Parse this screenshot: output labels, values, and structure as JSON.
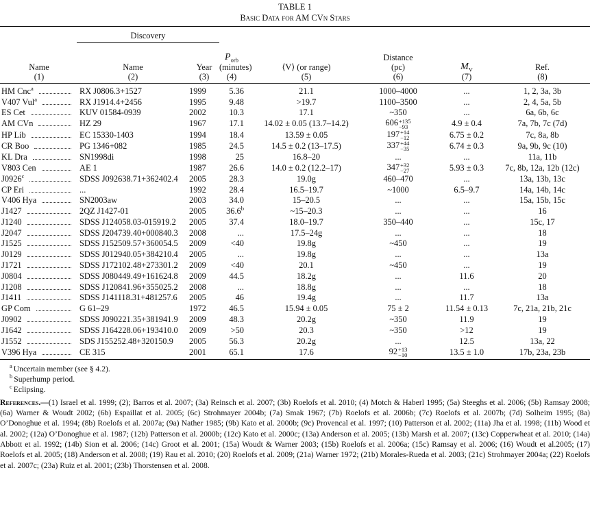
{
  "header": {
    "title": "TABLE 1",
    "subtitle": "Basic Data for AM CVn Stars"
  },
  "table": {
    "group_header": "Discovery",
    "columns": [
      {
        "label": "Name",
        "number": "(1)"
      },
      {
        "label": "Name",
        "number": "(2)"
      },
      {
        "label": "Year",
        "number": "(3)"
      },
      {
        "label": {
          "text": "P",
          "sub": "orb"
        },
        "unit": "(minutes)",
        "number": "(4)"
      },
      {
        "label": "⟨V⟩ (or range)",
        "number": "(5)"
      },
      {
        "label": "Distance",
        "unit": "(pc)",
        "number": "(6)"
      },
      {
        "label": {
          "text": "M",
          "sub": "V"
        },
        "number": "(7)"
      },
      {
        "label": "Ref.",
        "number": "(8)"
      }
    ],
    "rows": [
      [
        {
          "text": "HM Cnc",
          "sup": "a"
        },
        "RX J0806.3+1527",
        "1999",
        "5.36",
        "21.1",
        "1000–4000",
        "...",
        "1, 2, 3a, 3b"
      ],
      [
        {
          "text": "V407 Vul",
          "sup": "a"
        },
        "RX J1914.4+2456",
        "1995",
        "9.48",
        ">19.7",
        "1100–3500",
        "...",
        "2, 4, 5a, 5b"
      ],
      [
        "ES Cet",
        "KUV 01584-0939",
        "2002",
        "10.3",
        "17.1",
        "~350",
        "...",
        "6a, 6b, 6c"
      ],
      [
        "AM CVn",
        "HZ 29",
        "1967",
        "17.1",
        "14.02 ± 0.05 (13.7–14.2)",
        {
          "text": "606",
          "sup": "+135",
          "sub": "−93"
        },
        "4.9 ± 0.4",
        "7a, 7b, 7c (7d)"
      ],
      [
        "HP Lib",
        "EC 15330-1403",
        "1994",
        "18.4",
        "13.59 ± 0.05",
        {
          "text": "197",
          "sup": "+14",
          "sub": "−12"
        },
        "6.75 ± 0.2",
        "7c, 8a, 8b"
      ],
      [
        "CR Boo",
        "PG 1346+082",
        "1985",
        "24.5",
        "14.5 ± 0.2 (13–17.5)",
        {
          "text": "337",
          "sup": "+44",
          "sub": "−35"
        },
        "6.74 ± 0.3",
        "9a, 9b, 9c (10)"
      ],
      [
        "KL Dra",
        "SN1998di",
        "1998",
        "25",
        "16.8–20",
        "...",
        "...",
        "11a, 11b"
      ],
      [
        "V803 Cen",
        "AE 1",
        "1987",
        "26.6",
        "14.0 ± 0.2 (12.2–17)",
        {
          "text": "347",
          "sup": "+32",
          "sub": "−27"
        },
        "5.93 ± 0.3",
        "7c, 8b, 12a, 12b (12c)"
      ],
      [
        {
          "text": "J0926",
          "sup": "c"
        },
        "SDSS J092638.71+362402.4",
        "2005",
        "28.3",
        "19.0g",
        "460–470",
        "...",
        "13a, 13b, 13c"
      ],
      [
        "CP Eri",
        "...",
        "1992",
        "28.4",
        "16.5–19.7",
        "~1000",
        "6.5–9.7",
        "14a, 14b, 14c"
      ],
      [
        "V406 Hya",
        "SN2003aw",
        "2003",
        "34.0",
        "15–20.5",
        "...",
        "...",
        "15a, 15b, 15c"
      ],
      [
        "J1427",
        "2QZ J1427-01",
        "2005",
        {
          "text": "36.6",
          "sup": "b"
        },
        "~15–20.3",
        "...",
        "...",
        "16"
      ],
      [
        "J1240",
        "SDSS J124058.03-015919.2",
        "2005",
        "37.4",
        "18.0–19.7",
        "350–440",
        "...",
        "15c, 17"
      ],
      [
        "J2047",
        "SDSS J204739.40+000840.3",
        "2008",
        "...",
        "17.5–24g",
        "...",
        "...",
        "18"
      ],
      [
        "J1525",
        "SDSS J152509.57+360054.5",
        "2009",
        "<40",
        "19.8g",
        "~450",
        "...",
        "19"
      ],
      [
        "J0129",
        "SDSS J012940.05+384210.4",
        "2005",
        "...",
        "19.8g",
        "...",
        "...",
        "13a"
      ],
      [
        "J1721",
        "SDSS J172102.48+273301.2",
        "2009",
        "<40",
        "20.1",
        "~450",
        "...",
        "19"
      ],
      [
        "J0804",
        "SDSS J080449.49+161624.8",
        "2009",
        "44.5",
        "18.2g",
        "...",
        "11.6",
        "20"
      ],
      [
        "J1208",
        "SDSS J120841.96+355025.2",
        "2008",
        "...",
        "18.8g",
        "...",
        "...",
        "18"
      ],
      [
        "J1411",
        "SDSS J141118.31+481257.6",
        "2005",
        "46",
        "19.4g",
        "...",
        "11.7",
        "13a"
      ],
      [
        "GP Com",
        "G 61–29",
        "1972",
        "46.5",
        "15.94 ± 0.05",
        "75 ± 2",
        "11.54 ± 0.13",
        "7c, 21a, 21b, 21c"
      ],
      [
        "J0902",
        "SDSS J090221.35+381941.9",
        "2009",
        "48.3",
        "20.2g",
        "~350",
        "11.9",
        "19"
      ],
      [
        "J1642",
        "SDSS J164228.06+193410.0",
        "2009",
        ">50",
        "20.3",
        "~350",
        ">12",
        "19"
      ],
      [
        "J1552",
        "SDS J155252.48+320150.9",
        "2005",
        "56.3",
        "20.2g",
        "...",
        "12.5",
        "13a, 22"
      ],
      [
        "V396 Hya",
        "CE 315",
        "2001",
        "65.1",
        "17.6",
        {
          "text": "92",
          "sup": "+13",
          "sub": "−10"
        },
        "13.5 ± 1.0",
        "17b, 23a, 23b"
      ]
    ]
  },
  "notes": [
    {
      "mark": "a",
      "text": "Uncertain member (see § 4.2)."
    },
    {
      "mark": "b",
      "text": "Superhump period."
    },
    {
      "mark": "c",
      "text": "Eclipsing."
    }
  ],
  "references": {
    "label": "References.—",
    "text": "(1) Israel et al. 1999; (2); Barros et al. 2007; (3a) Reinsch et al. 2007; (3b) Roelofs et al. 2010; (4) Motch & Haberl 1995; (5a) Steeghs et al. 2006; (5b) Ramsay 2008; (6a) Warner & Woudt 2002; (6b) Espaillat et al. 2005; (6c) Strohmayer 2004b; (7a) Smak 1967; (7b) Roelofs et al. 2006b; (7c) Roelofs et al. 2007b; (7d) Solheim 1995; (8a) O’Donoghue et al. 1994; (8b) Roelofs et al. 2007a; (9a) Nather 1985; (9b) Kato et al. 2000b; (9c) Provencal et al. 1997; (10) Patterson et al. 2002; (11a) Jha et al. 1998; (11b) Wood et al. 2002; (12a) O’Donoghue et al. 1987; (12b) Patterson et al. 2000b; (12c) Kato et al. 2000c; (13a) Anderson et al. 2005; (13b) Marsh et al. 2007; (13c) Copperwheat et al. 2010; (14a) Abbott et al. 1992; (14b) Sion et al. 2006; (14c) Groot et al. 2001; (15a) Woudt & Warner 2003; (15b) Roelofs et al. 2006a; (15c) Ramsay et al. 2006; (16) Woudt et al.2005; (17) Roelofs et al. 2005; (18) Anderson et al. 2008; (19) Rau et al. 2010; (20) Roelofs et al. 2009; (21a) Warner 1972; (21b) Morales-Rueda et al. 2003; (21c) Strohmayer 2004a; (22) Roelofs et al. 2007c; (23a) Ruiz et al. 2001; (23b) Thorstensen et al. 2008."
  }
}
